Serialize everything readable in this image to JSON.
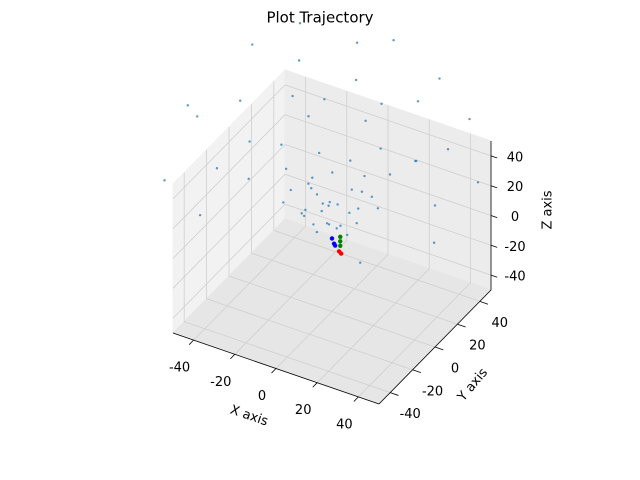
{
  "chart_data": {
    "type": "scatter3d",
    "title": "Plot Trajectory",
    "xlabel": "X axis",
    "ylabel": "Y axis",
    "zlabel": "Z axis",
    "xlim": [
      -50,
      50
    ],
    "ylim": [
      -50,
      50
    ],
    "zlim": [
      -50,
      50
    ],
    "xticks": [
      -40,
      -20,
      0,
      20,
      40
    ],
    "yticks": [
      -40,
      -20,
      0,
      20,
      40
    ],
    "zticks": [
      -40,
      -20,
      0,
      20,
      40
    ],
    "grid": true,
    "series": [
      {
        "color": "#1f77b4",
        "x": [
          -10,
          -5,
          0,
          5,
          -15,
          -20,
          10,
          -8,
          3,
          -12,
          -3,
          8,
          -18,
          -25,
          0,
          -6,
          12,
          -14,
          6,
          -2,
          -22,
          4,
          -9,
          15,
          -16,
          -4,
          2,
          -11,
          9,
          -7,
          -30,
          20,
          -35,
          10,
          -25,
          25,
          -40,
          0,
          30,
          -20,
          -45,
          15,
          -30,
          5,
          35,
          -10,
          -50,
          40,
          -35,
          20,
          -60,
          50,
          -55,
          45,
          -15,
          25,
          -70,
          60,
          0,
          -40,
          -65,
          55,
          30,
          -45,
          10
        ],
        "y": [
          5,
          0,
          5,
          -5,
          10,
          0,
          5,
          15,
          10,
          -5,
          -8,
          12,
          12,
          5,
          -2,
          8,
          0,
          2,
          18,
          20,
          -3,
          -10,
          -2,
          8,
          18,
          3,
          14,
          12,
          -3,
          -12,
          10,
          15,
          -10,
          25,
          25,
          -5,
          0,
          30,
          20,
          30,
          -20,
          -20,
          20,
          35,
          10,
          40,
          10,
          30,
          35,
          40,
          -10,
          0,
          30,
          40,
          50,
          50,
          0,
          20,
          55,
          45,
          -30,
          -10,
          -30,
          -35,
          -35
        ],
        "z": [
          20,
          15,
          18,
          12,
          25,
          22,
          20,
          28,
          10,
          14,
          8,
          25,
          18,
          30,
          25,
          12,
          15,
          10,
          30,
          35,
          15,
          18,
          30,
          28,
          35,
          5,
          22,
          8,
          8,
          20,
          40,
          40,
          30,
          45,
          50,
          35,
          45,
          55,
          50,
          60,
          40,
          30,
          65,
          65,
          60,
          70,
          60,
          55,
          75,
          70,
          60,
          45,
          80,
          70,
          85,
          80,
          55,
          50,
          90,
          90,
          30,
          30,
          20,
          20,
          40
        ]
      },
      {
        "color": "#0000ff",
        "x": [
          0,
          1,
          1
        ],
        "y": [
          0,
          0,
          1
        ],
        "z": [
          -1,
          -4,
          -6
        ]
      },
      {
        "color": "#008000",
        "x": [
          4,
          4,
          4
        ],
        "y": [
          0,
          0,
          0
        ],
        "z": [
          2,
          -1,
          -4
        ]
      },
      {
        "color": "#ff0000",
        "x": [
          4,
          5
        ],
        "y": [
          -1,
          -1
        ],
        "z": [
          -7,
          -8
        ]
      }
    ]
  }
}
